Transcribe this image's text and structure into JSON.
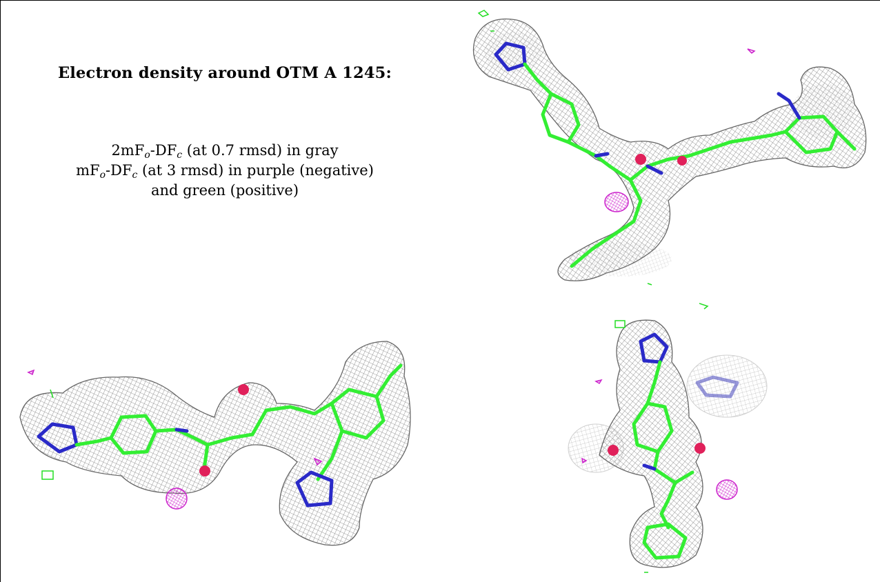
{
  "title": "Electron density around OTM A 1245:",
  "legend": {
    "line1": {
      "lead": "2mF",
      "sub1": "o",
      "mid": "-DF",
      "sub2": "c",
      "tail": " (at 0.7 rmsd) in gray"
    },
    "line2": {
      "lead": "mF",
      "sub1": "o",
      "mid": "-DF",
      "sub2": "c",
      "tail": " (at 3 rmsd) in purple (negative)"
    },
    "line3": "and green (positive)"
  },
  "colors": {
    "mesh": "#8c8c8c",
    "carbon": "#33ee33",
    "nitrogen": "#2a2ac8",
    "oxygen": "#e0205a",
    "negative": "#cc22cc",
    "positive": "#22dd22"
  },
  "views": [
    {
      "name": "top-right view"
    },
    {
      "name": "bottom-left view"
    },
    {
      "name": "bottom-right view"
    }
  ]
}
